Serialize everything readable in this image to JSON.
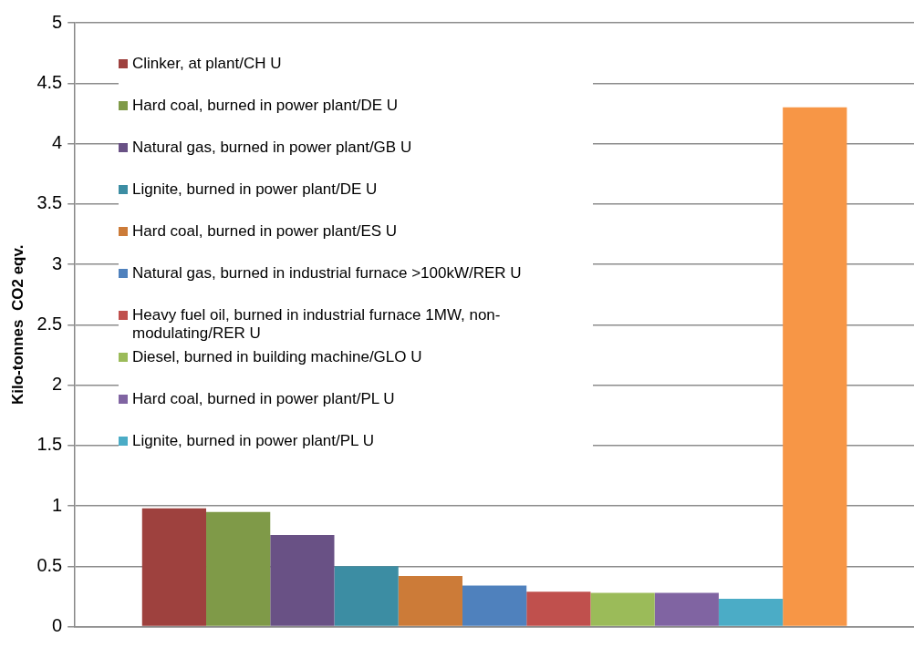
{
  "chart_data": {
    "type": "bar",
    "ylabel": "Kilo-tonnes  CO2 eqv.",
    "categories": [
      null
    ],
    "series": [
      {
        "name": "Clinker, at plant/CH U",
        "color": "#9e413e",
        "values": [
          0.98
        ]
      },
      {
        "name": "Hard coal, burned in power plant/DE U",
        "color": "#7f9a48",
        "values": [
          0.95
        ]
      },
      {
        "name": "Natural gas, burned in power plant/GB U",
        "color": "#695185",
        "values": [
          0.76
        ]
      },
      {
        "name": "Lignite, burned in power plant/DE U",
        "color": "#3c8da3",
        "values": [
          0.5
        ]
      },
      {
        "name": "Hard coal, burned in power plant/ES U",
        "color": "#cc7b38",
        "values": [
          0.42
        ]
      },
      {
        "name": "Natural gas, burned in industrial furnace >100kW/RER U",
        "color": "#4f81bd",
        "values": [
          0.34
        ]
      },
      {
        "name": "Heavy fuel oil, burned in industrial furnace 1MW, non-modulating/RER U",
        "color": "#c0504d",
        "values": [
          0.29
        ]
      },
      {
        "name": "Diesel, burned in building machine/GLO U",
        "color": "#9bbb59",
        "values": [
          0.28
        ]
      },
      {
        "name": "Hard coal, burned in power plant/PL U",
        "color": "#8064a2",
        "values": [
          0.28
        ]
      },
      {
        "name": "Lignite, burned in power plant/PL U",
        "color": "#4bacc6",
        "values": [
          0.23
        ]
      },
      {
        "color": "#f79646",
        "values": [
          4.3
        ]
      }
    ],
    "ylim": [
      0,
      5
    ],
    "yticks": [
      0,
      0.5,
      1,
      1.5,
      2,
      2.5,
      3,
      3.5,
      4,
      4.5,
      5
    ],
    "grid": "y",
    "legend": "top left"
  }
}
